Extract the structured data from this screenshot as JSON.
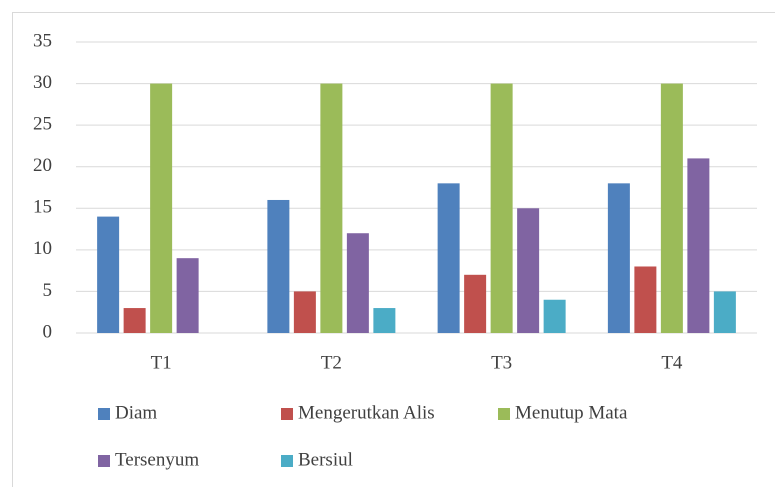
{
  "chart_data": {
    "type": "bar",
    "categories": [
      "T1",
      "T2",
      "T3",
      "T4"
    ],
    "series": [
      {
        "name": "Diam",
        "color": "#4f81bd",
        "values": [
          14,
          16,
          18,
          18
        ]
      },
      {
        "name": "Mengerutkan Alis",
        "color": "#c0504d",
        "values": [
          3,
          5,
          7,
          8
        ]
      },
      {
        "name": "Menutup Mata",
        "color": "#9bbb59",
        "values": [
          30,
          30,
          30,
          30
        ]
      },
      {
        "name": "Tersenyum",
        "color": "#8064a2",
        "values": [
          9,
          12,
          15,
          21
        ]
      },
      {
        "name": "Bersiul",
        "color": "#4bacc6",
        "values": [
          0,
          3,
          4,
          5
        ]
      }
    ],
    "ylim": [
      0,
      35
    ],
    "yticks": [
      0,
      5,
      10,
      15,
      20,
      25,
      30,
      35
    ],
    "grid": true,
    "legend": "bottom"
  }
}
